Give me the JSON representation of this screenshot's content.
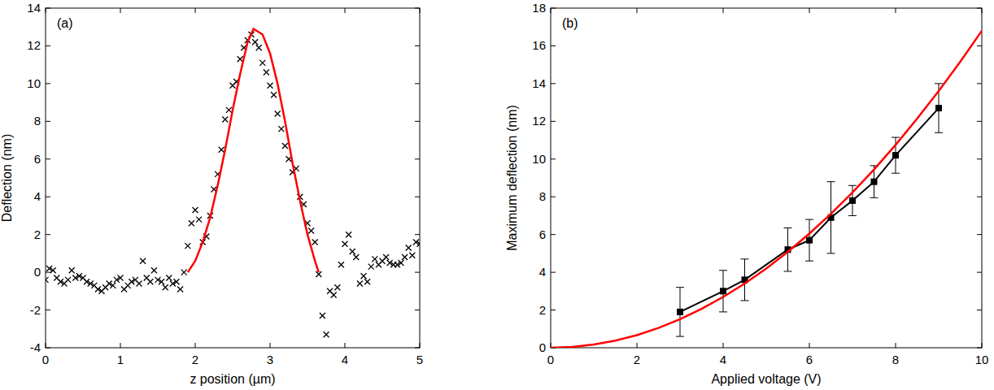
{
  "chart_data": [
    {
      "type": "scatter",
      "title": "(a)",
      "x_label": "z position (µm)",
      "y_label": "Deflection (nm)",
      "xlim": [
        0,
        5
      ],
      "ylim": [
        -4,
        14
      ],
      "xticks": [
        0,
        1,
        2,
        3,
        4,
        5
      ],
      "yticks": [
        -4,
        -2,
        0,
        2,
        4,
        6,
        8,
        10,
        12,
        14
      ],
      "series": [
        {
          "type": "scatter",
          "marker": "x",
          "color": "#000000",
          "x": [
            0.0,
            0.05,
            0.1,
            0.15,
            0.2,
            0.25,
            0.3,
            0.35,
            0.4,
            0.45,
            0.5,
            0.55,
            0.6,
            0.65,
            0.7,
            0.75,
            0.8,
            0.85,
            0.9,
            0.95,
            1.0,
            1.05,
            1.1,
            1.15,
            1.2,
            1.25,
            1.3,
            1.35,
            1.4,
            1.45,
            1.5,
            1.55,
            1.6,
            1.65,
            1.7,
            1.75,
            1.8,
            1.85,
            1.9,
            1.95,
            2.0,
            2.05,
            2.1,
            2.15,
            2.2,
            2.25,
            2.3,
            2.35,
            2.4,
            2.45,
            2.5,
            2.55,
            2.6,
            2.65,
            2.7,
            2.75,
            2.8,
            2.85,
            2.9,
            2.95,
            3.0,
            3.05,
            3.1,
            3.15,
            3.2,
            3.25,
            3.3,
            3.35,
            3.4,
            3.45,
            3.5,
            3.55,
            3.6,
            3.65,
            3.7,
            3.75,
            3.8,
            3.85,
            3.9,
            3.95,
            4.0,
            4.05,
            4.1,
            4.15,
            4.2,
            4.25,
            4.3,
            4.35,
            4.4,
            4.45,
            4.5,
            4.55,
            4.6,
            4.65,
            4.7,
            4.75,
            4.8,
            4.85,
            4.9,
            4.95,
            5.0
          ],
          "values": [
            -0.4,
            0.2,
            0.1,
            -0.3,
            -0.5,
            -0.6,
            -0.4,
            0.1,
            -0.3,
            -0.2,
            -0.3,
            -0.5,
            -0.6,
            -0.7,
            -0.9,
            -1.0,
            -0.8,
            -0.6,
            -0.7,
            -0.4,
            -0.3,
            -0.9,
            -0.7,
            -0.5,
            -0.4,
            -0.6,
            0.6,
            -0.3,
            -0.5,
            0.1,
            -0.4,
            -0.5,
            -0.8,
            -0.3,
            -0.6,
            -0.5,
            -0.9,
            0.0,
            1.4,
            2.6,
            3.3,
            2.8,
            1.6,
            1.9,
            3.0,
            4.4,
            5.2,
            6.5,
            8.1,
            8.6,
            9.9,
            10.1,
            11.3,
            11.9,
            12.3,
            12.6,
            12.2,
            11.9,
            11.1,
            10.6,
            9.9,
            9.4,
            8.4,
            7.6,
            6.7,
            6.0,
            5.3,
            5.5,
            4.0,
            3.6,
            2.6,
            2.2,
            1.6,
            -0.1,
            -2.3,
            -3.3,
            -1.0,
            -1.2,
            -0.8,
            0.4,
            1.5,
            2.0,
            1.1,
            0.8,
            -0.6,
            -0.2,
            -0.5,
            0.3,
            0.7,
            0.4,
            0.6,
            0.8,
            0.5,
            0.4,
            0.4,
            0.5,
            0.8,
            1.3,
            0.9,
            1.6,
            1.5
          ]
        },
        {
          "type": "line",
          "color": "#ff0000",
          "x": [
            1.9,
            2.0,
            2.1,
            2.2,
            2.3,
            2.4,
            2.5,
            2.6,
            2.7,
            2.78,
            2.9,
            3.0,
            3.1,
            3.2,
            3.3,
            3.4,
            3.5,
            3.6,
            3.65
          ],
          "values": [
            0,
            0.6,
            1.6,
            2.9,
            4.6,
            6.5,
            8.6,
            10.5,
            12.2,
            12.9,
            12.6,
            11.6,
            10.0,
            8.0,
            5.8,
            3.8,
            2.0,
            0.6,
            0
          ]
        }
      ]
    },
    {
      "type": "line",
      "title": "(b)",
      "x_label": "Applied voltage (V)",
      "y_label": "Maximum deflection (nm)",
      "xlim": [
        0,
        10
      ],
      "ylim": [
        0,
        18
      ],
      "xticks": [
        0,
        2,
        4,
        6,
        8,
        10
      ],
      "yticks": [
        0,
        2,
        4,
        6,
        8,
        10,
        12,
        14,
        16,
        18
      ],
      "series": [
        {
          "type": "line",
          "marker": "square",
          "color": "#000000",
          "x": [
            3,
            4,
            4.5,
            5.5,
            6,
            6.5,
            7,
            7.5,
            8,
            9
          ],
          "values": [
            1.9,
            3.0,
            3.6,
            5.2,
            5.7,
            6.9,
            7.8,
            8.8,
            10.2,
            12.7
          ],
          "errors": [
            1.3,
            1.1,
            1.1,
            1.15,
            1.1,
            1.9,
            0.8,
            0.85,
            0.95,
            1.3
          ]
        },
        {
          "type": "line",
          "color": "#ff0000",
          "x": [
            0,
            0.5,
            1,
            1.5,
            2,
            2.5,
            3,
            3.5,
            4,
            4.5,
            5,
            5.5,
            6,
            6.5,
            7,
            7.5,
            8,
            8.5,
            9,
            9.5,
            10
          ],
          "values": [
            0,
            0.04,
            0.17,
            0.38,
            0.67,
            1.05,
            1.51,
            2.06,
            2.69,
            3.4,
            4.2,
            5.08,
            6.05,
            7.1,
            8.23,
            9.45,
            10.75,
            12.14,
            13.61,
            15.16,
            16.8
          ]
        }
      ]
    }
  ]
}
